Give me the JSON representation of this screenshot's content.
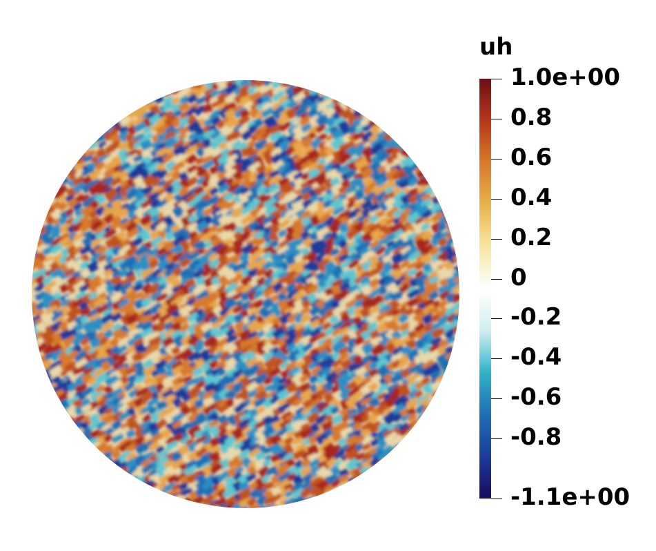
{
  "colorbar": {
    "title": "uh",
    "range": [
      -1.1,
      1.0
    ],
    "ticks": [
      {
        "value": 1.0,
        "label": "1.0e+00"
      },
      {
        "value": 0.8,
        "label": "0.8"
      },
      {
        "value": 0.6,
        "label": "0.6"
      },
      {
        "value": 0.4,
        "label": "0.4"
      },
      {
        "value": 0.2,
        "label": "0.2"
      },
      {
        "value": 0.0,
        "label": "0"
      },
      {
        "value": -0.2,
        "label": "-0.2"
      },
      {
        "value": -0.4,
        "label": "-0.4"
      },
      {
        "value": -0.6,
        "label": "-0.6"
      },
      {
        "value": -0.8,
        "label": "-0.8"
      },
      {
        "value": -1.1,
        "label": "-1.1e+00"
      }
    ],
    "colormap": [
      "#1a0a5e",
      "#1b3b9a",
      "#1f6fb4",
      "#2fb3c9",
      "#cfeff0",
      "#ffffff",
      "#f6e7a2",
      "#e8b24a",
      "#d77a2a",
      "#b8361b",
      "#6b0f17"
    ]
  },
  "field": {
    "shape": "disk",
    "pattern": "random noise field"
  }
}
